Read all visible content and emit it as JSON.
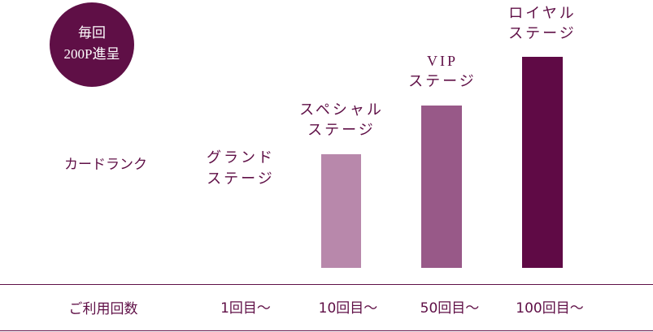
{
  "badge": {
    "lines": [
      "毎回",
      "200P進呈"
    ]
  },
  "rank_label": "カードランク",
  "count_label": "ご利用回数",
  "stages": [
    {
      "name": [
        "グランド",
        "ステージ"
      ],
      "count": "1回目〜"
    },
    {
      "name": [
        "スペシャル",
        "ステージ"
      ],
      "count": "10回目〜"
    },
    {
      "name": [
        "VIP",
        "ステージ"
      ],
      "count": "50回目〜"
    },
    {
      "name": [
        "ロイヤル",
        "ステージ"
      ],
      "count": "100回目〜"
    }
  ]
}
